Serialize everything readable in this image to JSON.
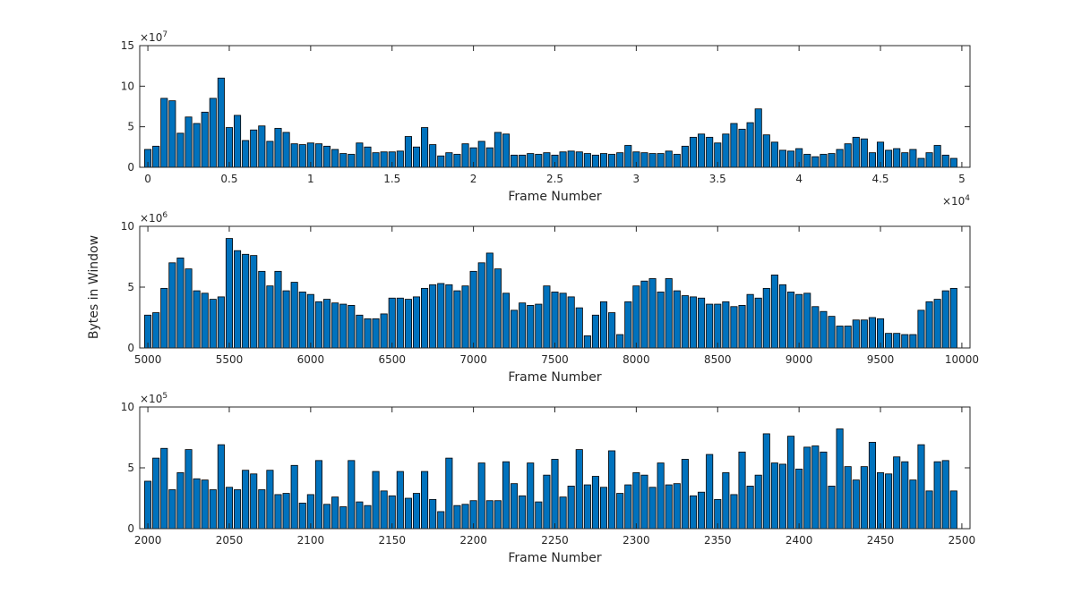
{
  "figure": {
    "ylabel": "Bytes in Window",
    "bar_color": "#0072BD",
    "bar_edge_color": "#000000",
    "axis_color": "#262626"
  },
  "chart_data": [
    {
      "type": "bar",
      "xlabel": "Frame Number",
      "xlim": [
        -500,
        50500
      ],
      "ylim": [
        0,
        15
      ],
      "xticks": [
        0,
        5000,
        10000,
        15000,
        20000,
        25000,
        30000,
        35000,
        40000,
        45000,
        50000
      ],
      "xtick_labels": [
        "0",
        "0.5",
        "1",
        "1.5",
        "2",
        "2.5",
        "3",
        "3.5",
        "4",
        "4.5",
        "5"
      ],
      "x_exponent": "4",
      "yticks": [
        0,
        5,
        10,
        15
      ],
      "ytick_labels": [
        "0",
        "5",
        "10",
        "15"
      ],
      "y_exponent": "7",
      "x_start": 0,
      "x_step": 500,
      "values": [
        2.2,
        2.6,
        8.5,
        8.2,
        4.2,
        6.2,
        5.4,
        6.8,
        8.5,
        11.0,
        4.9,
        6.4,
        3.3,
        4.6,
        5.1,
        3.2,
        4.8,
        4.3,
        2.9,
        2.8,
        3.0,
        2.9,
        2.6,
        2.2,
        1.7,
        1.6,
        3.0,
        2.5,
        1.8,
        1.9,
        1.9,
        2.0,
        3.8,
        2.5,
        4.9,
        2.8,
        1.4,
        1.8,
        1.6,
        2.9,
        2.4,
        3.2,
        2.4,
        4.3,
        4.1,
        1.5,
        1.5,
        1.7,
        1.6,
        1.8,
        1.5,
        1.9,
        2.0,
        1.9,
        1.7,
        1.5,
        1.7,
        1.6,
        1.8,
        2.7,
        1.9,
        1.8,
        1.7,
        1.7,
        2.0,
        1.6,
        2.6,
        3.7,
        4.1,
        3.7,
        3.0,
        4.1,
        5.4,
        4.7,
        5.5,
        7.2,
        4.0,
        3.1,
        2.1,
        2.0,
        2.3,
        1.6,
        1.3,
        1.6,
        1.7,
        2.2,
        2.9,
        3.7,
        3.5,
        1.8,
        3.1,
        2.1,
        2.3,
        1.8,
        2.2,
        1.1,
        1.8,
        2.7,
        1.5,
        1.1
      ]
    },
    {
      "type": "bar",
      "xlabel": "Frame Number",
      "xlim": [
        4950,
        10050
      ],
      "ylim": [
        0,
        10
      ],
      "xticks": [
        5000,
        5500,
        6000,
        6500,
        7000,
        7500,
        8000,
        8500,
        9000,
        9500,
        10000
      ],
      "xtick_labels": [
        "5000",
        "5500",
        "6000",
        "6500",
        "7000",
        "7500",
        "8000",
        "8500",
        "9000",
        "9500",
        "10000"
      ],
      "x_exponent": "",
      "yticks": [
        0,
        5,
        10
      ],
      "ytick_labels": [
        "0",
        "5",
        "10"
      ],
      "y_exponent": "6",
      "x_start": 5000,
      "x_step": 50,
      "values": [
        2.7,
        2.9,
        4.9,
        7.0,
        7.4,
        6.5,
        4.7,
        4.5,
        4.0,
        4.2,
        9.0,
        8.0,
        7.7,
        7.6,
        6.3,
        5.1,
        6.3,
        4.7,
        5.4,
        4.6,
        4.4,
        3.8,
        4.0,
        3.7,
        3.6,
        3.5,
        2.7,
        2.4,
        2.4,
        2.8,
        4.1,
        4.1,
        4.0,
        4.2,
        4.9,
        5.2,
        5.3,
        5.2,
        4.7,
        5.1,
        6.3,
        7.0,
        7.8,
        6.5,
        4.5,
        3.1,
        3.7,
        3.5,
        3.6,
        5.1,
        4.6,
        4.5,
        4.2,
        3.3,
        1.0,
        2.7,
        3.8,
        2.9,
        1.1,
        3.8,
        5.1,
        5.5,
        5.7,
        4.6,
        5.7,
        4.7,
        4.3,
        4.2,
        4.1,
        3.6,
        3.6,
        3.8,
        3.4,
        3.5,
        4.4,
        4.1,
        4.9,
        6.0,
        5.2,
        4.6,
        4.4,
        4.5,
        3.4,
        3.0,
        2.6,
        1.8,
        1.8,
        2.3,
        2.3,
        2.5,
        2.4,
        1.2,
        1.2,
        1.1,
        1.1,
        3.1,
        3.8,
        4.0,
        4.7,
        4.9
      ]
    },
    {
      "type": "bar",
      "xlabel": "Frame Number",
      "xlim": [
        1995,
        2505
      ],
      "ylim": [
        0,
        10
      ],
      "xticks": [
        2000,
        2050,
        2100,
        2150,
        2200,
        2250,
        2300,
        2350,
        2400,
        2450,
        2500
      ],
      "xtick_labels": [
        "2000",
        "2050",
        "2100",
        "2150",
        "2200",
        "2250",
        "2300",
        "2350",
        "2400",
        "2450",
        "2500"
      ],
      "x_exponent": "",
      "yticks": [
        0,
        5,
        10
      ],
      "ytick_labels": [
        "0",
        "5",
        "10"
      ],
      "y_exponent": "5",
      "x_start": 2000,
      "x_step": 5,
      "values": [
        3.9,
        5.8,
        6.6,
        3.2,
        4.6,
        6.5,
        4.1,
        4.0,
        3.2,
        6.9,
        3.4,
        3.2,
        4.8,
        4.5,
        3.2,
        4.8,
        2.8,
        2.9,
        5.2,
        2.1,
        2.8,
        5.6,
        2.0,
        2.6,
        1.8,
        5.6,
        2.2,
        1.9,
        4.7,
        3.1,
        2.7,
        4.7,
        2.5,
        2.9,
        4.7,
        2.4,
        1.4,
        5.8,
        1.9,
        2.0,
        2.3,
        5.4,
        2.3,
        2.3,
        5.5,
        3.7,
        2.7,
        5.4,
        2.2,
        4.4,
        5.7,
        2.6,
        3.5,
        6.5,
        3.6,
        4.3,
        3.4,
        6.4,
        2.9,
        3.6,
        4.6,
        4.4,
        3.4,
        5.4,
        3.6,
        3.7,
        5.7,
        2.7,
        3.0,
        6.1,
        2.4,
        4.6,
        2.8,
        6.3,
        3.5,
        4.4,
        7.8,
        5.4,
        5.3,
        7.6,
        4.9,
        6.7,
        6.8,
        6.3,
        3.5,
        8.2,
        5.1,
        4.0,
        5.1,
        7.1,
        4.6,
        4.5,
        5.9,
        5.5,
        4.0,
        6.9,
        3.1,
        5.5,
        5.6,
        3.1
      ]
    }
  ]
}
